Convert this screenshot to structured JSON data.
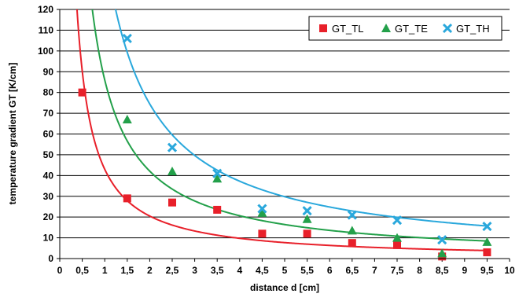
{
  "chart_data": {
    "type": "scatter",
    "title": "",
    "xlabel": "distance d [cm]",
    "ylabel": "temperature gradient GT [K/cm]",
    "xlim": [
      0,
      10
    ],
    "ylim": [
      0,
      120
    ],
    "xticks": [
      "0",
      "0,5",
      "1",
      "1,5",
      "2",
      "2,5",
      "3",
      "3,5",
      "4",
      "4,5",
      "5",
      "5,5",
      "6",
      "6,5",
      "7",
      "7,5",
      "8",
      "8,5",
      "9",
      "9,5",
      "10"
    ],
    "yticks": [
      "0",
      "10",
      "20",
      "30",
      "40",
      "50",
      "60",
      "70",
      "80",
      "90",
      "100",
      "110",
      "120"
    ],
    "grid": "horizontal",
    "legend_position": "top-right",
    "series": [
      {
        "name": "GT_TL",
        "color": "#e8202a",
        "marker": "square",
        "x": [
          0.5,
          1.5,
          2.5,
          3.5,
          4.5,
          5.5,
          6.5,
          7.5,
          8.5,
          9.5
        ],
        "y": [
          80,
          29,
          27,
          23.5,
          12,
          12,
          7.5,
          6.5,
          1,
          3
        ],
        "trend": {
          "type": "power",
          "a": 43,
          "b": -1.07
        }
      },
      {
        "name": "GT_TE",
        "color": "#23a04a",
        "marker": "triangle",
        "x": [
          1.5,
          2.5,
          3.5,
          4.5,
          5.5,
          6.5,
          7.5,
          8.5,
          9.5
        ],
        "y": [
          67,
          42,
          38.5,
          22,
          19,
          13.5,
          10,
          2.5,
          8
        ],
        "trend": {
          "type": "power",
          "a": 86,
          "b": -1.03
        }
      },
      {
        "name": "GT_TH",
        "color": "#2aa8dc",
        "marker": "x",
        "x": [
          1.5,
          2.5,
          3.5,
          4.5,
          5.5,
          6.5,
          7.5,
          8.5,
          9.5
        ],
        "y": [
          106,
          53.5,
          41,
          24,
          23,
          21,
          18.5,
          9,
          15.5
        ],
        "trend": {
          "type": "power",
          "a": 149,
          "b": -1.0
        }
      }
    ]
  }
}
